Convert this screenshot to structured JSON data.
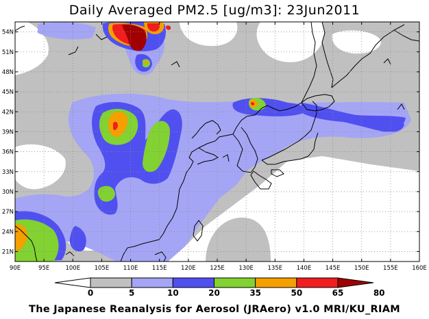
{
  "title": "Daily Averaged PM2.5 [ug/m3]: 23Jun2011",
  "footer": "The Japanese Reanalysis for Aerosol (JRAero) v1.0 MRI/KU_RIAM",
  "map": {
    "lon_range": [
      90,
      160
    ],
    "lat_range": [
      19.5,
      55.5
    ],
    "lon_labels": [
      "90E",
      "95E",
      "100E",
      "105E",
      "110E",
      "115E",
      "120E",
      "125E",
      "130E",
      "135E",
      "140E",
      "145E",
      "150E",
      "155E",
      "160E"
    ],
    "lat_labels": [
      "21N",
      "24N",
      "27N",
      "30N",
      "33N",
      "36N",
      "39N",
      "42N",
      "45N",
      "48N",
      "51N",
      "54N"
    ],
    "lon_ticks": [
      90,
      95,
      100,
      105,
      110,
      115,
      120,
      125,
      130,
      135,
      140,
      145,
      150,
      155,
      160
    ],
    "lat_ticks": [
      21,
      24,
      27,
      30,
      33,
      36,
      39,
      42,
      45,
      48,
      51,
      54
    ]
  },
  "legend": {
    "levels": [
      "0",
      "5",
      "10",
      "20",
      "35",
      "50",
      "65",
      "80"
    ],
    "colors": [
      "#ffffff",
      "#c0c0c0",
      "#a5a5f5",
      "#5050f0",
      "#82d232",
      "#f5a000",
      "#f01e1e",
      "#a00000"
    ]
  },
  "colors": {
    "c5": "#c0c0c0",
    "c10": "#a5a5f5",
    "c20": "#5050f0",
    "c35": "#82d232",
    "c50": "#f5a000",
    "c65": "#f01e1e",
    "c80": "#a00000"
  }
}
